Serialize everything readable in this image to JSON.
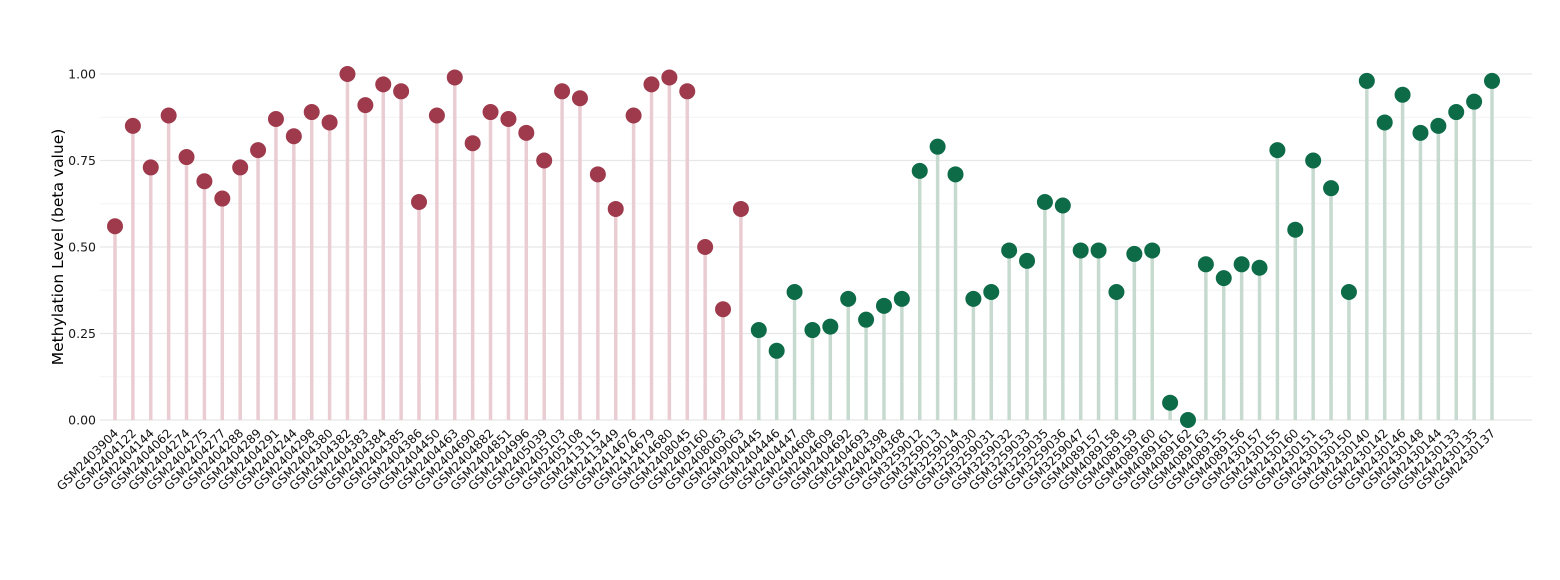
{
  "chart_data": {
    "type": "lollipop",
    "title": "",
    "ylabel": "Methylation Level (beta value)",
    "xlabel": "",
    "ylim": [
      0,
      1
    ],
    "yticks": [
      "0.00",
      "0.25",
      "0.50",
      "0.75",
      "1.00"
    ],
    "grid": true,
    "legend": "none",
    "groups": {
      "group1": {
        "dot_color": "#9e3a4c",
        "stem_color": "#e9cdd3"
      },
      "group2": {
        "dot_color": "#0e6b48",
        "stem_color": "#c7dad0"
      }
    },
    "points": [
      {
        "sample": "GSM2403904",
        "value": 0.56,
        "group": "group1"
      },
      {
        "sample": "GSM2404122",
        "value": 0.85,
        "group": "group1"
      },
      {
        "sample": "GSM2404144",
        "value": 0.73,
        "group": "group1"
      },
      {
        "sample": "GSM2404062",
        "value": 0.88,
        "group": "group1"
      },
      {
        "sample": "GSM2404274",
        "value": 0.76,
        "group": "group1"
      },
      {
        "sample": "GSM2404275",
        "value": 0.69,
        "group": "group1"
      },
      {
        "sample": "GSM2404277",
        "value": 0.64,
        "group": "group1"
      },
      {
        "sample": "GSM2404288",
        "value": 0.73,
        "group": "group1"
      },
      {
        "sample": "GSM2404289",
        "value": 0.78,
        "group": "group1"
      },
      {
        "sample": "GSM2404291",
        "value": 0.87,
        "group": "group1"
      },
      {
        "sample": "GSM2404244",
        "value": 0.82,
        "group": "group1"
      },
      {
        "sample": "GSM2404298",
        "value": 0.89,
        "group": "group1"
      },
      {
        "sample": "GSM2404380",
        "value": 0.86,
        "group": "group1"
      },
      {
        "sample": "GSM2404382",
        "value": 1.0,
        "group": "group1"
      },
      {
        "sample": "GSM2404383",
        "value": 0.91,
        "group": "group1"
      },
      {
        "sample": "GSM2404384",
        "value": 0.97,
        "group": "group1"
      },
      {
        "sample": "GSM2404385",
        "value": 0.95,
        "group": "group1"
      },
      {
        "sample": "GSM2404386",
        "value": 0.63,
        "group": "group1"
      },
      {
        "sample": "GSM2404450",
        "value": 0.88,
        "group": "group1"
      },
      {
        "sample": "GSM2404463",
        "value": 0.99,
        "group": "group1"
      },
      {
        "sample": "GSM2404690",
        "value": 0.8,
        "group": "group1"
      },
      {
        "sample": "GSM2404882",
        "value": 0.89,
        "group": "group1"
      },
      {
        "sample": "GSM2404851",
        "value": 0.87,
        "group": "group1"
      },
      {
        "sample": "GSM2404996",
        "value": 0.83,
        "group": "group1"
      },
      {
        "sample": "GSM2405039",
        "value": 0.75,
        "group": "group1"
      },
      {
        "sample": "GSM2405103",
        "value": 0.95,
        "group": "group1"
      },
      {
        "sample": "GSM2405108",
        "value": 0.93,
        "group": "group1"
      },
      {
        "sample": "GSM2413115",
        "value": 0.71,
        "group": "group1"
      },
      {
        "sample": "GSM2413449",
        "value": 0.61,
        "group": "group1"
      },
      {
        "sample": "GSM2414676",
        "value": 0.88,
        "group": "group1"
      },
      {
        "sample": "GSM2414679",
        "value": 0.97,
        "group": "group1"
      },
      {
        "sample": "GSM2414680",
        "value": 0.99,
        "group": "group1"
      },
      {
        "sample": "GSM2408045",
        "value": 0.95,
        "group": "group1"
      },
      {
        "sample": "GSM2409160",
        "value": 0.5,
        "group": "group1"
      },
      {
        "sample": "GSM2408063",
        "value": 0.32,
        "group": "group1"
      },
      {
        "sample": "GSM2409063",
        "value": 0.61,
        "group": "group1"
      },
      {
        "sample": "GSM2404445",
        "value": 0.26,
        "group": "group2"
      },
      {
        "sample": "GSM2404446",
        "value": 0.2,
        "group": "group2"
      },
      {
        "sample": "GSM2404447",
        "value": 0.37,
        "group": "group2"
      },
      {
        "sample": "GSM2404608",
        "value": 0.26,
        "group": "group2"
      },
      {
        "sample": "GSM2404609",
        "value": 0.27,
        "group": "group2"
      },
      {
        "sample": "GSM2404692",
        "value": 0.35,
        "group": "group2"
      },
      {
        "sample": "GSM2404693",
        "value": 0.29,
        "group": "group2"
      },
      {
        "sample": "GSM2404398",
        "value": 0.33,
        "group": "group2"
      },
      {
        "sample": "GSM2404368",
        "value": 0.35,
        "group": "group2"
      },
      {
        "sample": "GSM3259012",
        "value": 0.72,
        "group": "group2"
      },
      {
        "sample": "GSM3259013",
        "value": 0.79,
        "group": "group2"
      },
      {
        "sample": "GSM3259014",
        "value": 0.71,
        "group": "group2"
      },
      {
        "sample": "GSM3259030",
        "value": 0.35,
        "group": "group2"
      },
      {
        "sample": "GSM3259031",
        "value": 0.37,
        "group": "group2"
      },
      {
        "sample": "GSM3259032",
        "value": 0.49,
        "group": "group2"
      },
      {
        "sample": "GSM3259033",
        "value": 0.46,
        "group": "group2"
      },
      {
        "sample": "GSM3259035",
        "value": 0.63,
        "group": "group2"
      },
      {
        "sample": "GSM3259036",
        "value": 0.62,
        "group": "group2"
      },
      {
        "sample": "GSM3259047",
        "value": 0.49,
        "group": "group2"
      },
      {
        "sample": "GSM4089157",
        "value": 0.49,
        "group": "group2"
      },
      {
        "sample": "GSM4089158",
        "value": 0.37,
        "group": "group2"
      },
      {
        "sample": "GSM4089159",
        "value": 0.48,
        "group": "group2"
      },
      {
        "sample": "GSM4089160",
        "value": 0.49,
        "group": "group2"
      },
      {
        "sample": "GSM4089161",
        "value": 0.05,
        "group": "group2"
      },
      {
        "sample": "GSM4089162",
        "value": 0.0,
        "group": "group2"
      },
      {
        "sample": "GSM4089163",
        "value": 0.45,
        "group": "group2"
      },
      {
        "sample": "GSM4089155",
        "value": 0.41,
        "group": "group2"
      },
      {
        "sample": "GSM4089156",
        "value": 0.45,
        "group": "group2"
      },
      {
        "sample": "GSM2430157",
        "value": 0.44,
        "group": "group2"
      },
      {
        "sample": "GSM2430155",
        "value": 0.78,
        "group": "group2"
      },
      {
        "sample": "GSM2430160",
        "value": 0.55,
        "group": "group2"
      },
      {
        "sample": "GSM2430151",
        "value": 0.75,
        "group": "group2"
      },
      {
        "sample": "GSM2430153",
        "value": 0.67,
        "group": "group2"
      },
      {
        "sample": "GSM2430150",
        "value": 0.37,
        "group": "group2"
      },
      {
        "sample": "GSM2430140",
        "value": 0.98,
        "group": "group2"
      },
      {
        "sample": "GSM2430142",
        "value": 0.86,
        "group": "group2"
      },
      {
        "sample": "GSM2430146",
        "value": 0.94,
        "group": "group2"
      },
      {
        "sample": "GSM2430148",
        "value": 0.83,
        "group": "group2"
      },
      {
        "sample": "GSM2430144",
        "value": 0.85,
        "group": "group2"
      },
      {
        "sample": "GSM2430133",
        "value": 0.89,
        "group": "group2"
      },
      {
        "sample": "GSM2430135",
        "value": 0.92,
        "group": "group2"
      },
      {
        "sample": "GSM2430137",
        "value": 0.98,
        "group": "group2"
      }
    ]
  }
}
